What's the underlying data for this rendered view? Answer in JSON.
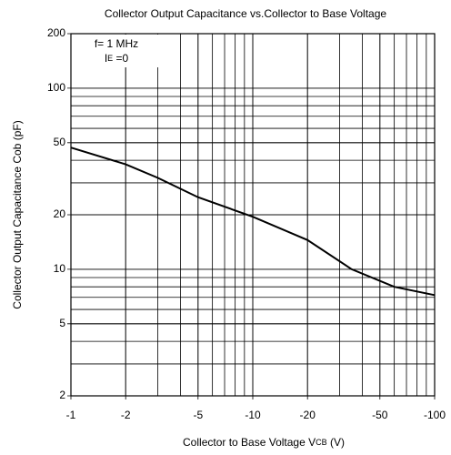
{
  "chart_data": {
    "type": "line",
    "title": "Collector Output Capacitance vs.Collector to Base Voltage",
    "x_label": {
      "main": "Collector to Base Voltage V",
      "sub": "CB",
      "rest": " (V)"
    },
    "y_label": "Collector Output Capacitance  Cob (pF)",
    "annotations": [
      {
        "main": "f= 1 MHz"
      },
      {
        "main": "I",
        "sub": "E",
        "rest": " =0"
      }
    ],
    "xscale": "log",
    "yscale": "log",
    "grid": true,
    "xlim": [
      -1,
      -100
    ],
    "xticks": [
      -1,
      -2,
      -5,
      -10,
      -20,
      -50,
      -100
    ],
    "ylim": [
      2,
      200
    ],
    "yticks": [
      2,
      5,
      10,
      20,
      50,
      100,
      200
    ],
    "series": [
      {
        "color": "#000000",
        "x": [
          -1,
          -2,
          -3,
          -5,
          -10,
          -20,
          -35,
          -60,
          -100
        ],
        "values": [
          47,
          38,
          32,
          25,
          19.5,
          14.5,
          10,
          8,
          7.2
        ]
      }
    ]
  }
}
